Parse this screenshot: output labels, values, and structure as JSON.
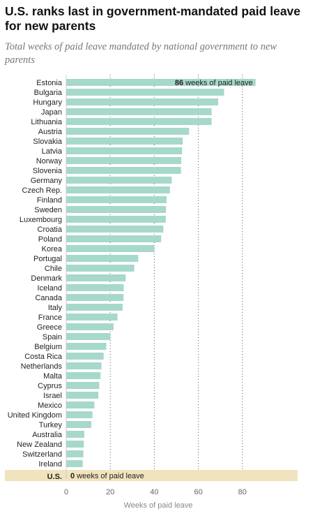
{
  "title": "U.S. ranks last in government-mandated paid leave for new parents",
  "subtitle": "Total weeks of paid leave mandated by national government to new parents",
  "colors": {
    "bar": "#a6d8cb",
    "highlight_bg": "#f1e3bd",
    "grid": "#555555"
  },
  "chart_data": {
    "type": "bar",
    "orientation": "horizontal",
    "title": "U.S. ranks last in government-mandated paid leave for new parents",
    "subtitle": "Total weeks of paid leave mandated by national government to new parents",
    "xlabel": "Weeks of paid leave",
    "xlim": [
      0,
      100
    ],
    "xticks": [
      0,
      20,
      40,
      60,
      80
    ],
    "grid": "dotted vertical",
    "categories": [
      "Estonia",
      "Bulgaria",
      "Hungary",
      "Japan",
      "Lithuania",
      "Austria",
      "Slovakia",
      "Latvia",
      "Norway",
      "Slovenia",
      "Germany",
      "Czech Rep.",
      "Finland",
      "Sweden",
      "Luxembourg",
      "Croatia",
      "Poland",
      "Korea",
      "Portugal",
      "Chile",
      "Denmark",
      "Iceland",
      "Canada",
      "Italy",
      "France",
      "Greece",
      "Spain",
      "Belgium",
      "Costa Rica",
      "Netherlands",
      "Malta",
      "Cyprus",
      "Israel",
      "Mexico",
      "United Kingdom",
      "Turkey",
      "Australia",
      "New Zealand",
      "Switzerland",
      "Ireland",
      "U.S."
    ],
    "values": [
      86,
      71.7,
      69,
      66,
      66,
      55.8,
      52.9,
      52.6,
      52.2,
      52.1,
      47.9,
      47.1,
      45.6,
      45.3,
      45.2,
      44.1,
      43.1,
      40,
      32.7,
      30.9,
      27,
      26.1,
      26,
      25.6,
      23.3,
      21.5,
      20,
      18.2,
      17,
      16,
      15.6,
      15,
      14.6,
      12.8,
      11.9,
      11.4,
      8.2,
      8,
      7.8,
      7.5,
      0
    ],
    "annotations": {
      "top": {
        "value": "86",
        "text": "weeks of paid leave"
      },
      "highlight": {
        "country": "U.S.",
        "value": "0",
        "text": "weeks of paid leave"
      }
    }
  }
}
